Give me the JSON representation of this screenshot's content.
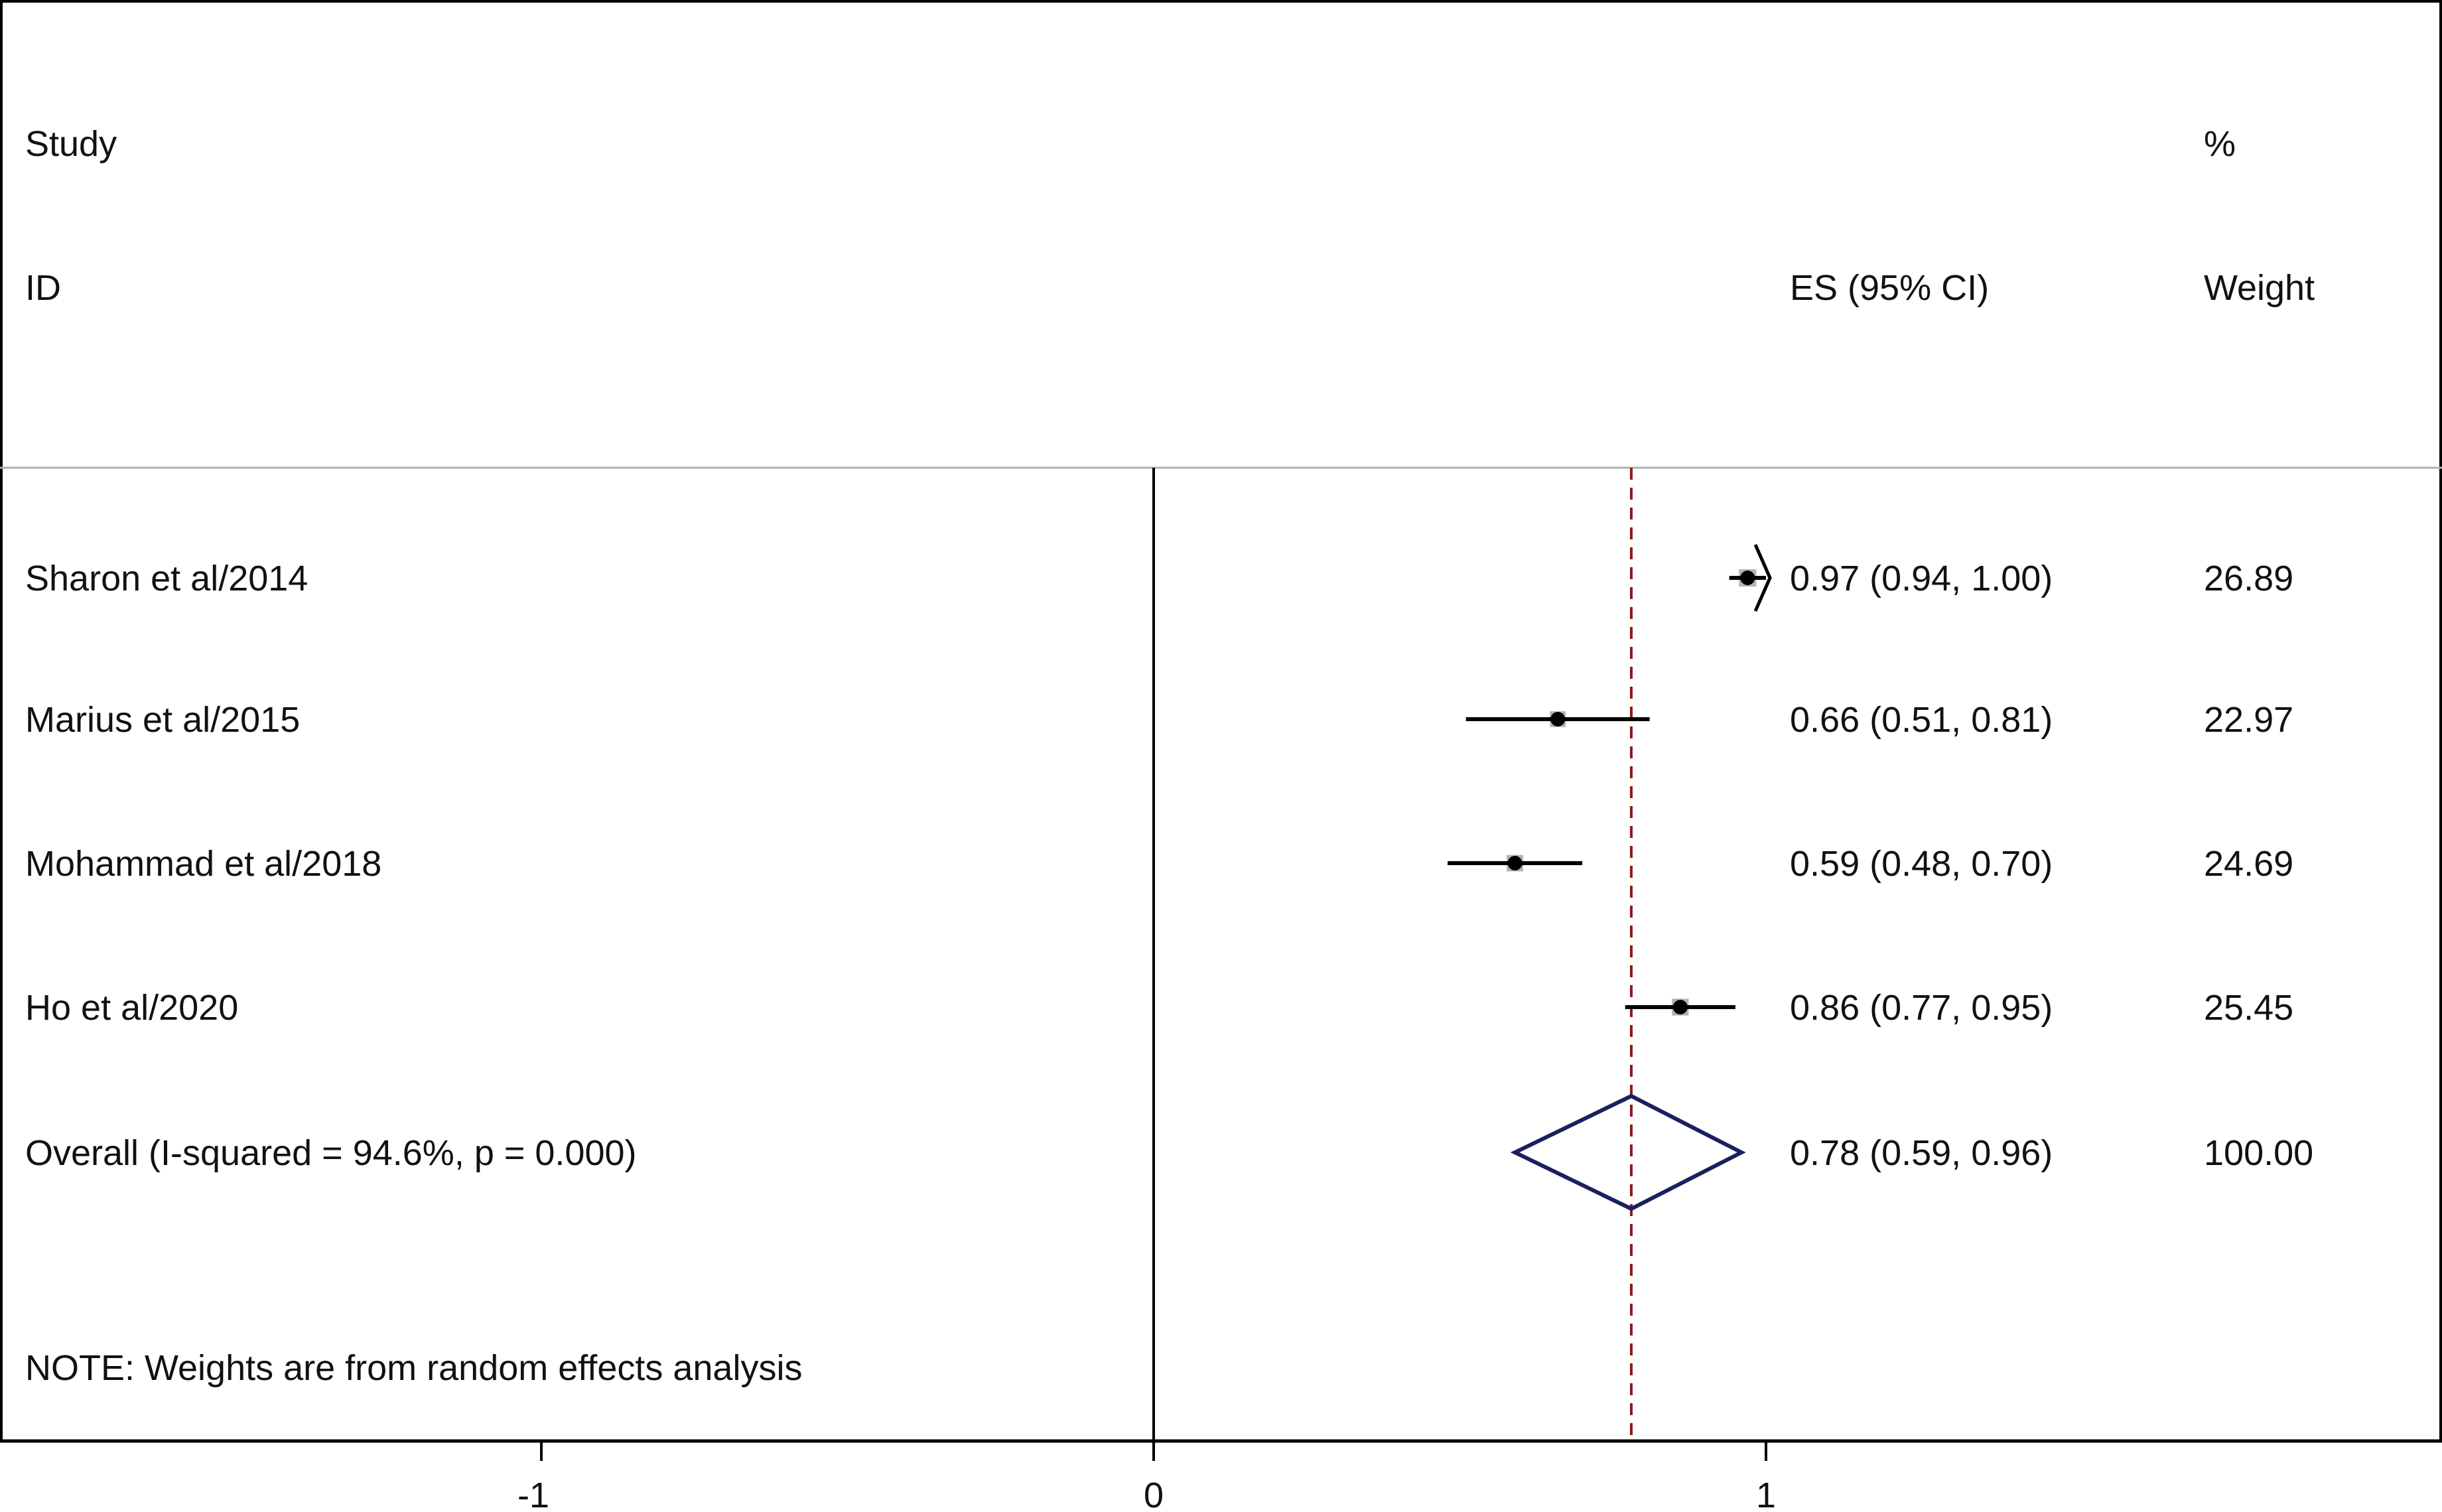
{
  "chart_data": {
    "type": "forest",
    "headers": {
      "study_line1": "Study",
      "study_line2": "ID",
      "es_label": "ES (95% CI)",
      "weight_line1": "%",
      "weight_line2": "Weight"
    },
    "studies": [
      {
        "label": "Sharon et al/2014",
        "es": 0.97,
        "lo": 0.94,
        "hi": 1.0,
        "ci_text": "0.97 (0.94, 1.00)",
        "weight": 26.89,
        "weight_text": "26.89",
        "arrow_right": true
      },
      {
        "label": "Marius et al/2015",
        "es": 0.66,
        "lo": 0.51,
        "hi": 0.81,
        "ci_text": "0.66 (0.51, 0.81)",
        "weight": 22.97,
        "weight_text": "22.97"
      },
      {
        "label": "Mohammad et al/2018",
        "es": 0.59,
        "lo": 0.48,
        "hi": 0.7,
        "ci_text": "0.59 (0.48, 0.70)",
        "weight": 24.69,
        "weight_text": "24.69"
      },
      {
        "label": "Ho et al/2020",
        "es": 0.86,
        "lo": 0.77,
        "hi": 0.95,
        "ci_text": "0.86 (0.77, 0.95)",
        "weight": 25.45,
        "weight_text": "25.45"
      }
    ],
    "overall": {
      "label": "Overall  (I-squared = 94.6%, p = 0.000)",
      "es": 0.78,
      "lo": 0.59,
      "hi": 0.96,
      "ci_text": "0.78 (0.59, 0.96)",
      "weight_text": "100.00"
    },
    "note": "NOTE: Weights are from random effects analysis",
    "x_ticks": [
      -1,
      0,
      1
    ],
    "x_tick_labels": [
      "-1",
      "0",
      "1"
    ],
    "xlim": [
      -2.2,
      2.3
    ],
    "null_line": 0,
    "reference_line": 0.78,
    "colors": {
      "lines": "#000000",
      "reference": "#8b1a1a",
      "diamond": "#1c1f5e",
      "weight_box": "#a6a6a6",
      "separator": "#b0b0b0"
    }
  }
}
